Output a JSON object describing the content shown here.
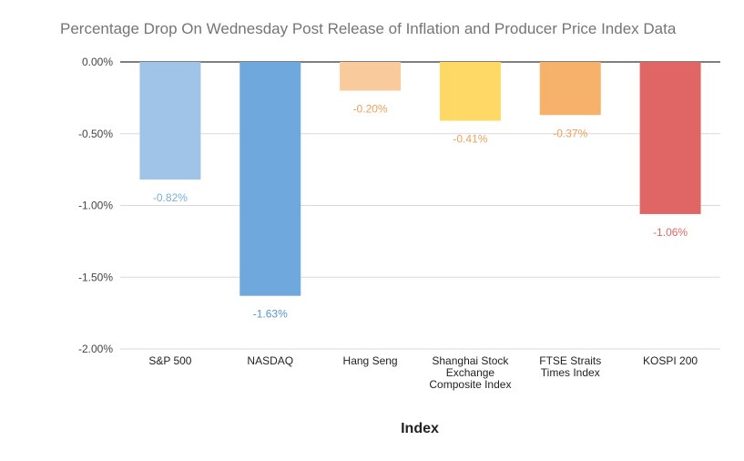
{
  "chart_data": {
    "type": "bar",
    "title": "Percentage Drop On Wednesday Post Release of Inflation and Producer Price Index Data",
    "xlabel": "Index",
    "ylabel": "",
    "categories": [
      [
        "S&P 500"
      ],
      [
        "NASDAQ"
      ],
      [
        "Hang Seng"
      ],
      [
        "Shanghai Stock",
        "Exchange",
        "Composite Index"
      ],
      [
        "FTSE Straits",
        "Times Index"
      ],
      [
        "KOSPI 200"
      ]
    ],
    "values": [
      -0.82,
      -1.63,
      -0.2,
      -0.41,
      -0.37,
      -1.06
    ],
    "data_labels": [
      "-0.82%",
      "-1.63%",
      "-0.20%",
      "-0.41%",
      "-0.37%",
      "-1.06%"
    ],
    "colors": [
      "#a0c4e8",
      "#6fa8dc",
      "#f9cb9c",
      "#ffd966",
      "#f6b26b",
      "#e06666"
    ],
    "label_colors": [
      "#7aaedc",
      "#5b95cf",
      "#f0a05a",
      "#f0a05a",
      "#f0a05a",
      "#e06666"
    ],
    "ylim": [
      -2.0,
      0.0
    ],
    "yticks": [
      0.0,
      -0.5,
      -1.0,
      -1.5,
      -2.0
    ],
    "ytick_labels": [
      "0.00%",
      "-0.50%",
      "-1.00%",
      "-1.50%",
      "-2.00%"
    ],
    "grid": true,
    "legend": "none"
  }
}
